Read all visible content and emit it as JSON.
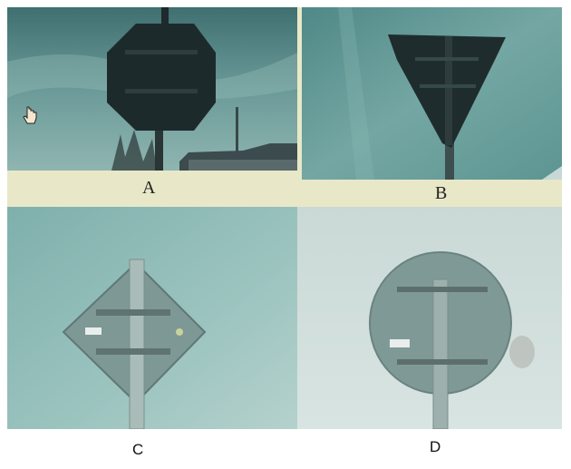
{
  "labels": {
    "a": "A",
    "b": "B",
    "c": "C",
    "d": "D"
  },
  "photos": [
    {
      "id": "A",
      "subject": "octagonal-sign-back"
    },
    {
      "id": "B",
      "subject": "triangular-sign-back"
    },
    {
      "id": "C",
      "subject": "diamond-sign-back"
    },
    {
      "id": "D",
      "subject": "round-sign-back"
    }
  ],
  "colors": {
    "sky_a": "#4f7d7e",
    "sky_b": "#5f9a98",
    "sky_c": "#8fb8b4",
    "sky_d": "#c9dad7",
    "sign_dark": "#1d2a2c",
    "sign_grey": "#7f9996",
    "frame_bg": "#e8e8c8"
  }
}
